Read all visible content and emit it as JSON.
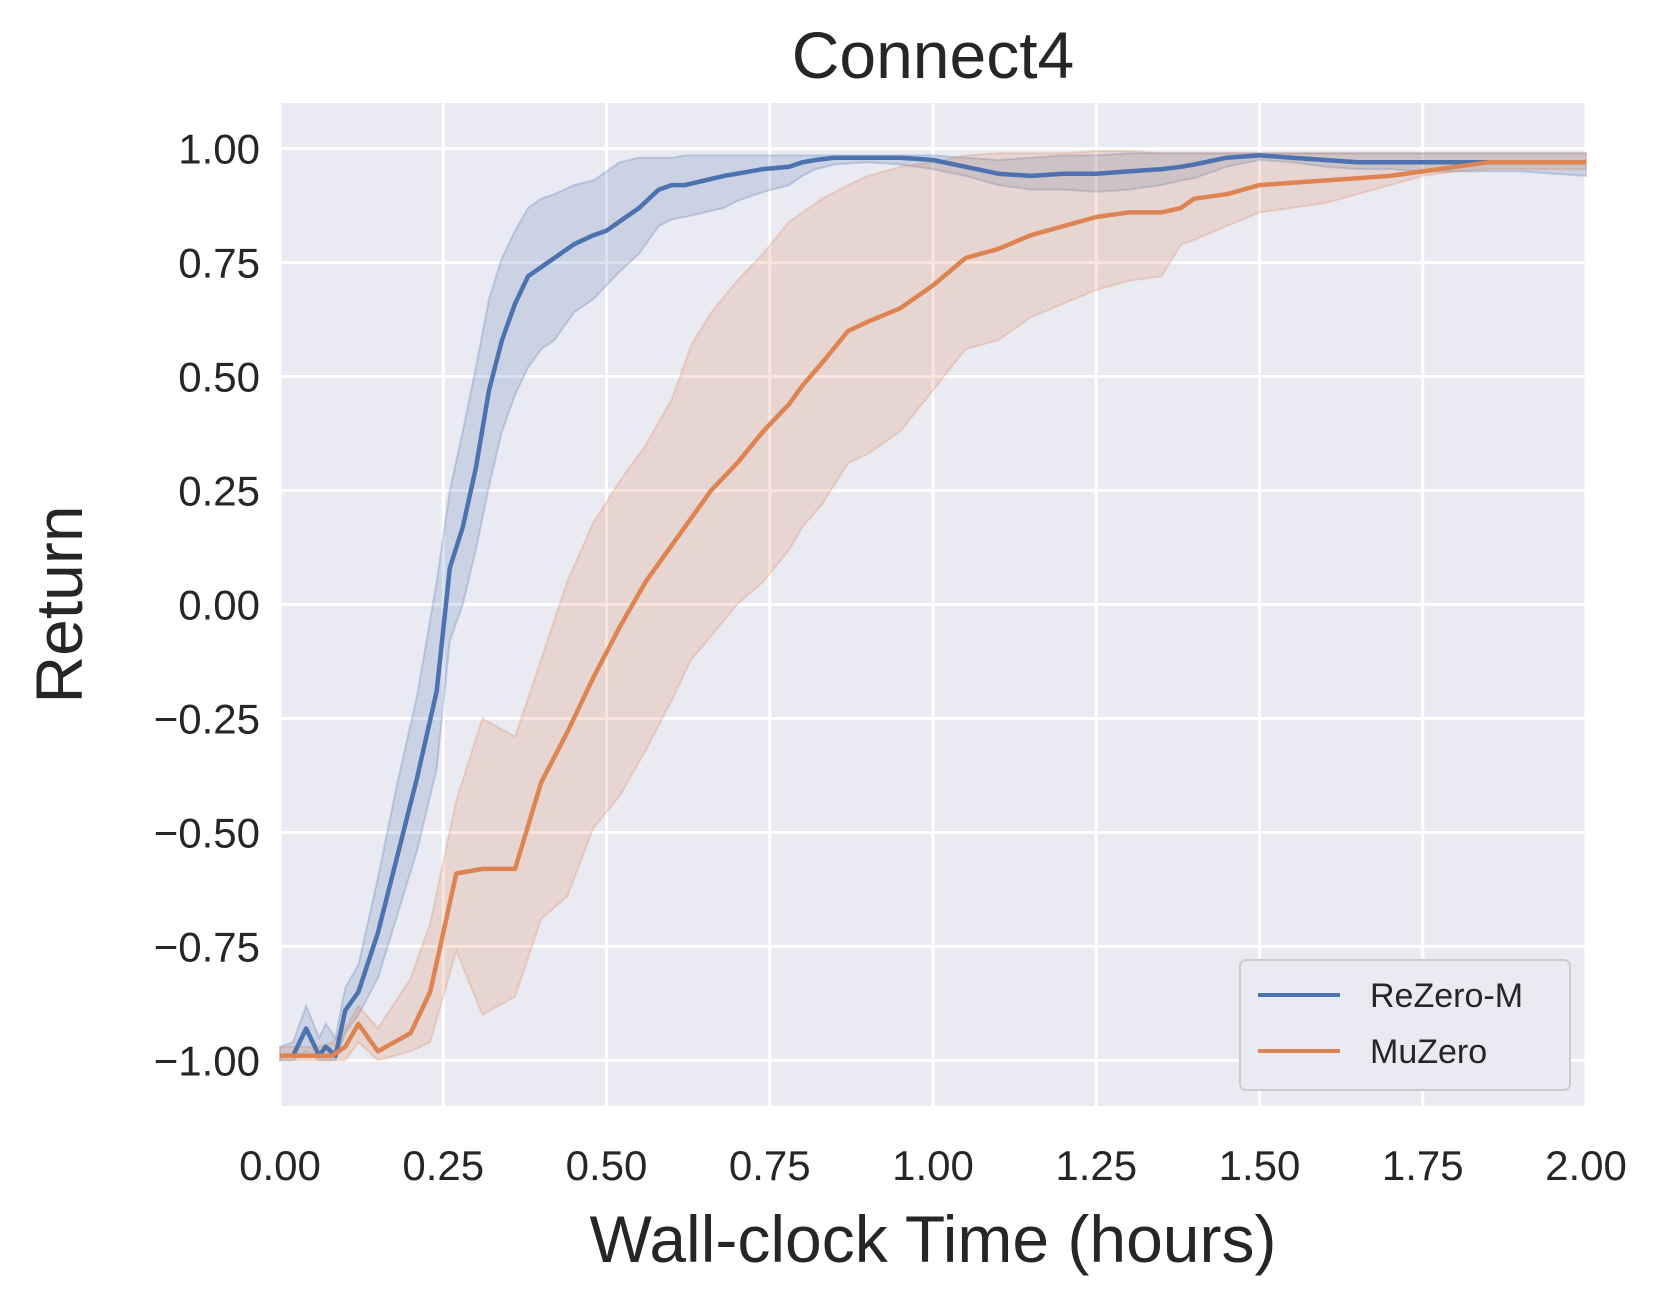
{
  "chart_data": {
    "type": "line",
    "title": "Connect4",
    "xlabel": "Wall-clock Time (hours)",
    "ylabel": "Return",
    "xlim": [
      0,
      2
    ],
    "ylim": [
      -1.1,
      1.1
    ],
    "xticks": [
      0,
      0.25,
      0.5,
      0.75,
      1.0,
      1.25,
      1.5,
      1.75,
      2.0
    ],
    "xtick_labels": [
      "0.00",
      "0.25",
      "0.50",
      "0.75",
      "1.00",
      "1.25",
      "1.50",
      "1.75",
      "2.00"
    ],
    "yticks": [
      1.0,
      0.75,
      0.5,
      0.25,
      0.0,
      -0.25,
      -0.5,
      -0.75,
      -1.0
    ],
    "ytick_labels": [
      "1.00",
      "0.75",
      "0.50",
      "0.25",
      "0.00",
      "−0.25",
      "−0.50",
      "−0.75",
      "−1.00"
    ],
    "grid": true,
    "legend_position": "lower-right",
    "background": "#eaeaf2",
    "series": [
      {
        "name": "ReZero-M",
        "color": "#4c72b0",
        "x": [
          0,
          0.02,
          0.04,
          0.06,
          0.07,
          0.085,
          0.1,
          0.12,
          0.15,
          0.18,
          0.21,
          0.24,
          0.26,
          0.28,
          0.3,
          0.32,
          0.34,
          0.36,
          0.38,
          0.4,
          0.42,
          0.45,
          0.48,
          0.5,
          0.52,
          0.55,
          0.58,
          0.6,
          0.62,
          0.65,
          0.68,
          0.7,
          0.74,
          0.78,
          0.8,
          0.82,
          0.85,
          0.9,
          0.95,
          1.0,
          1.05,
          1.1,
          1.15,
          1.2,
          1.25,
          1.3,
          1.35,
          1.38,
          1.4,
          1.45,
          1.5,
          1.55,
          1.6,
          1.65,
          1.7,
          1.75,
          1.8,
          1.85,
          1.9,
          1.95,
          2.0
        ],
        "y": [
          -0.99,
          -0.99,
          -0.93,
          -0.99,
          -0.97,
          -0.99,
          -0.89,
          -0.85,
          -0.72,
          -0.55,
          -0.38,
          -0.19,
          0.08,
          0.17,
          0.3,
          0.47,
          0.58,
          0.66,
          0.72,
          0.74,
          0.76,
          0.79,
          0.81,
          0.82,
          0.84,
          0.87,
          0.91,
          0.92,
          0.92,
          0.93,
          0.94,
          0.945,
          0.955,
          0.96,
          0.97,
          0.975,
          0.98,
          0.98,
          0.98,
          0.975,
          0.96,
          0.945,
          0.94,
          0.945,
          0.945,
          0.95,
          0.955,
          0.96,
          0.965,
          0.98,
          0.985,
          0.98,
          0.975,
          0.97,
          0.97,
          0.97,
          0.97,
          0.97,
          0.97,
          0.97,
          0.97
        ],
        "upper": [
          -0.97,
          -0.96,
          -0.88,
          -0.95,
          -0.92,
          -0.95,
          -0.84,
          -0.79,
          -0.6,
          -0.39,
          -0.2,
          0.05,
          0.25,
          0.38,
          0.52,
          0.67,
          0.76,
          0.82,
          0.87,
          0.89,
          0.9,
          0.92,
          0.93,
          0.95,
          0.97,
          0.98,
          0.98,
          0.98,
          0.985,
          0.985,
          0.985,
          0.985,
          0.985,
          0.985,
          0.985,
          0.985,
          0.985,
          0.985,
          0.985,
          0.985,
          0.98,
          0.975,
          0.98,
          0.985,
          0.985,
          0.99,
          0.99,
          0.99,
          0.99,
          0.99,
          0.99,
          0.99,
          0.99,
          0.99,
          0.99,
          0.99,
          0.99,
          0.99,
          0.99,
          0.99,
          0.99
        ],
        "lower": [
          -1.0,
          -1.0,
          -0.98,
          -1.0,
          -1.0,
          -1.0,
          -0.94,
          -0.9,
          -0.82,
          -0.68,
          -0.54,
          -0.36,
          -0.08,
          0.0,
          0.12,
          0.26,
          0.38,
          0.46,
          0.52,
          0.56,
          0.58,
          0.64,
          0.67,
          0.7,
          0.73,
          0.77,
          0.83,
          0.845,
          0.85,
          0.86,
          0.87,
          0.885,
          0.905,
          0.92,
          0.94,
          0.955,
          0.965,
          0.97,
          0.965,
          0.955,
          0.94,
          0.92,
          0.91,
          0.91,
          0.905,
          0.91,
          0.92,
          0.93,
          0.935,
          0.96,
          0.975,
          0.97,
          0.96,
          0.955,
          0.955,
          0.95,
          0.95,
          0.95,
          0.95,
          0.945,
          0.94
        ]
      },
      {
        "name": "MuZero",
        "color": "#dd8452",
        "x": [
          0,
          0.02,
          0.04,
          0.06,
          0.08,
          0.1,
          0.12,
          0.15,
          0.2,
          0.23,
          0.27,
          0.31,
          0.36,
          0.4,
          0.44,
          0.48,
          0.52,
          0.56,
          0.6,
          0.63,
          0.66,
          0.7,
          0.74,
          0.78,
          0.8,
          0.83,
          0.87,
          0.9,
          0.95,
          1.0,
          1.05,
          1.1,
          1.15,
          1.2,
          1.25,
          1.3,
          1.35,
          1.38,
          1.4,
          1.45,
          1.5,
          1.55,
          1.6,
          1.65,
          1.7,
          1.75,
          1.8,
          1.85,
          1.9,
          1.95,
          2.0
        ],
        "y": [
          -0.99,
          -0.99,
          -0.99,
          -0.99,
          -0.99,
          -0.97,
          -0.92,
          -0.98,
          -0.94,
          -0.85,
          -0.59,
          -0.58,
          -0.58,
          -0.39,
          -0.28,
          -0.16,
          -0.05,
          0.05,
          0.13,
          0.19,
          0.25,
          0.31,
          0.38,
          0.44,
          0.48,
          0.53,
          0.6,
          0.62,
          0.65,
          0.7,
          0.76,
          0.78,
          0.81,
          0.83,
          0.85,
          0.86,
          0.86,
          0.87,
          0.89,
          0.9,
          0.92,
          0.925,
          0.93,
          0.935,
          0.94,
          0.95,
          0.96,
          0.97,
          0.97,
          0.97,
          0.97
        ],
        "upper": [
          -0.97,
          -0.97,
          -0.97,
          -0.97,
          -0.96,
          -0.93,
          -0.88,
          -0.93,
          -0.82,
          -0.7,
          -0.43,
          -0.25,
          -0.29,
          -0.12,
          0.05,
          0.18,
          0.27,
          0.35,
          0.45,
          0.57,
          0.64,
          0.71,
          0.77,
          0.84,
          0.86,
          0.89,
          0.92,
          0.94,
          0.96,
          0.97,
          0.985,
          0.99,
          0.99,
          0.99,
          0.995,
          0.995,
          0.99,
          0.99,
          0.99,
          0.99,
          0.99,
          0.99,
          0.99,
          0.99,
          0.99,
          0.99,
          0.99,
          0.99,
          0.99,
          0.99,
          0.99
        ],
        "lower": [
          -1.0,
          -1.0,
          -1.0,
          -1.0,
          -1.0,
          -1.0,
          -0.96,
          -1.0,
          -0.98,
          -0.96,
          -0.76,
          -0.9,
          -0.86,
          -0.69,
          -0.64,
          -0.49,
          -0.42,
          -0.32,
          -0.21,
          -0.12,
          -0.07,
          0.0,
          0.05,
          0.12,
          0.17,
          0.22,
          0.31,
          0.33,
          0.38,
          0.47,
          0.56,
          0.58,
          0.63,
          0.66,
          0.69,
          0.71,
          0.72,
          0.79,
          0.8,
          0.83,
          0.86,
          0.87,
          0.88,
          0.9,
          0.92,
          0.94,
          0.95,
          0.955,
          0.955,
          0.955,
          0.955
        ]
      }
    ]
  }
}
